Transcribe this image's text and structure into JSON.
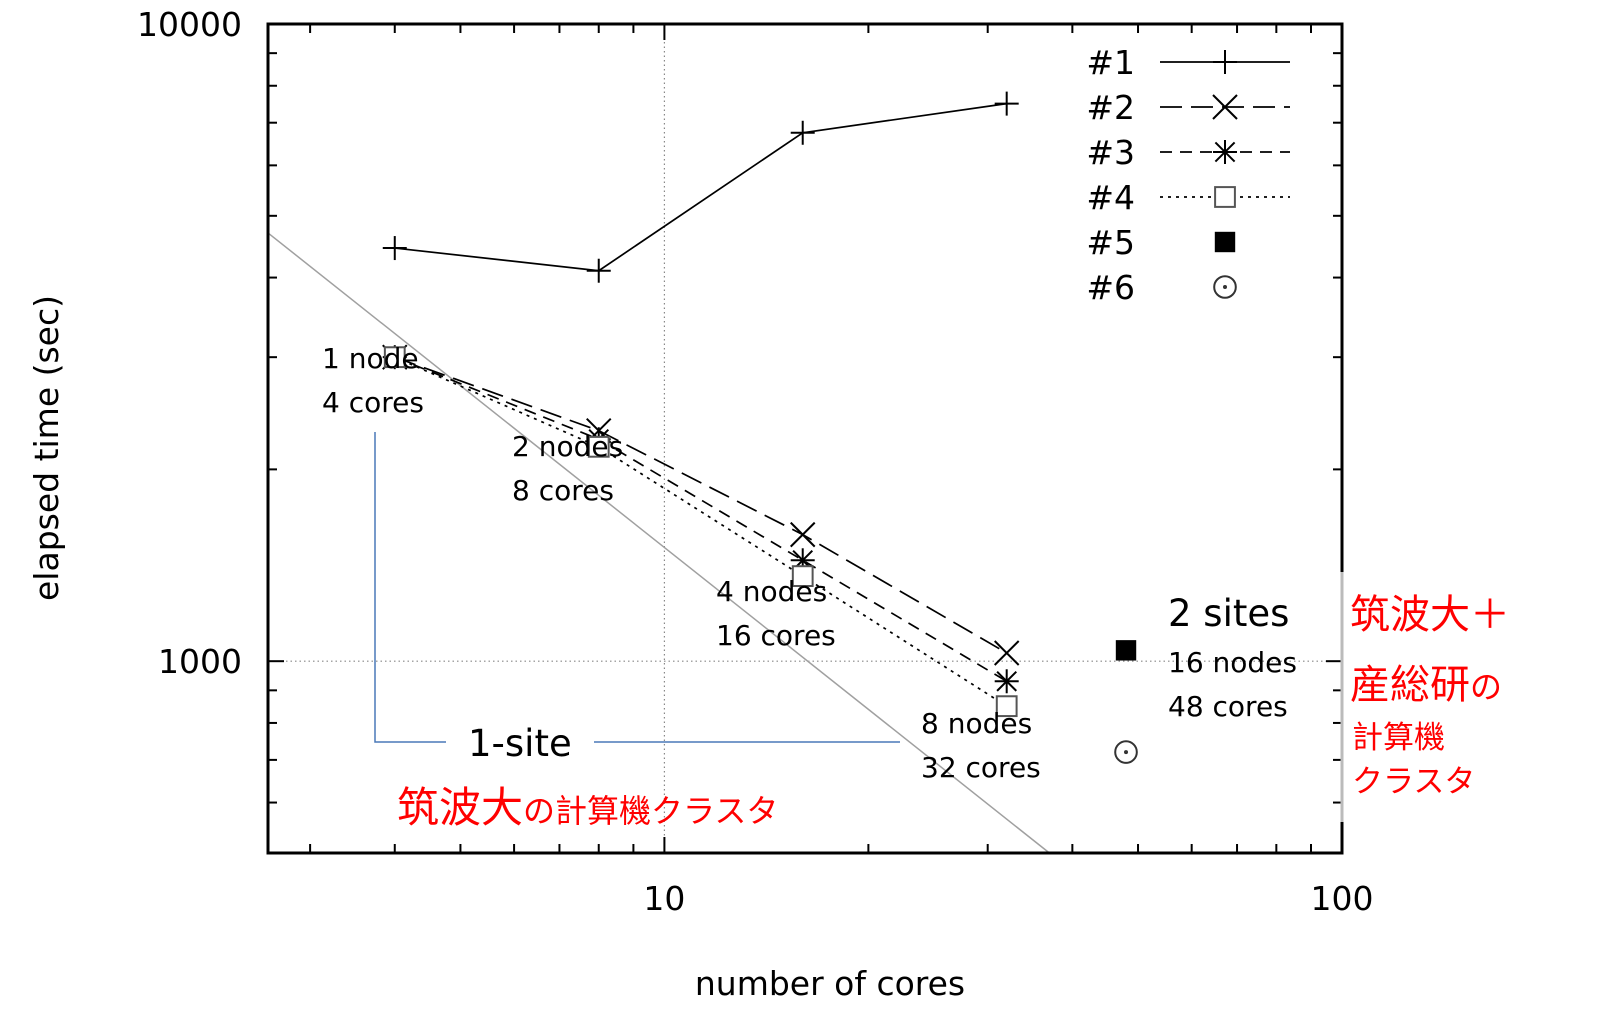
{
  "chart_data": {
    "type": "line",
    "title": "",
    "xlabel": "number of cores",
    "ylabel": "elapsed time (sec)",
    "xscale": "log",
    "yscale": "log",
    "xlim": [
      2.6,
      100
    ],
    "ylim": [
      500,
      10000
    ],
    "x_ticks": [
      10,
      100
    ],
    "x_tick_labels": [
      "10",
      "100"
    ],
    "y_ticks": [
      1000,
      10000
    ],
    "y_tick_labels": [
      "1000",
      "10000"
    ],
    "grid": "major lines dotted",
    "legend_position": "top-right",
    "series": [
      {
        "name": "#1",
        "style": "solid",
        "marker": "plus",
        "x": [
          4,
          8,
          16,
          32
        ],
        "y": [
          4450,
          4100,
          6750,
          7500
        ]
      },
      {
        "name": "#2",
        "style": "long-dash",
        "marker": "x",
        "x": [
          4,
          8,
          16,
          32
        ],
        "y": [
          3000,
          2300,
          1580,
          1030
        ]
      },
      {
        "name": "#3",
        "style": "dash",
        "marker": "asterisk",
        "x": [
          4,
          8,
          16,
          32
        ],
        "y": [
          3000,
          2230,
          1440,
          930
        ]
      },
      {
        "name": "#4",
        "style": "dotted",
        "marker": "open-square",
        "x": [
          4,
          8,
          16,
          32
        ],
        "y": [
          3000,
          2170,
          1360,
          850
        ]
      },
      {
        "name": "#5",
        "style": "none",
        "marker": "filled-square",
        "x": [
          48
        ],
        "y": [
          1040
        ]
      },
      {
        "name": "#6",
        "style": "none",
        "marker": "open-circle",
        "x": [
          48
        ],
        "y": [
          720
        ]
      }
    ],
    "reference_line": {
      "style": "thin gray solid",
      "x": [
        2.6,
        37
      ],
      "y": [
        4700,
        500
      ]
    },
    "annotations": {
      "n4": [
        "1 node",
        "4 cores"
      ],
      "n8": [
        "2 nodes",
        "8 cores"
      ],
      "n16": [
        "4 nodes",
        "16 cores"
      ],
      "n32": [
        "8 nodes",
        "32 cores"
      ],
      "n48_title": "2 sites",
      "n48": [
        "16 nodes",
        "48 cores"
      ],
      "one_site": "1-site",
      "tsukuba_big": "筑波大",
      "tsukuba_small": "の計算機クラスタ",
      "right_red_line1": "筑波大＋",
      "right_red_line2_big": "産総研",
      "right_red_line2_small": "の",
      "right_red_line3": "計算機",
      "right_red_line4": "クラスタ"
    },
    "colors": {
      "series": "#000000",
      "reference": "#a0a0a0",
      "grid": "#888888",
      "bracket": "#4a78b8",
      "red_text": "#ff0000"
    }
  }
}
